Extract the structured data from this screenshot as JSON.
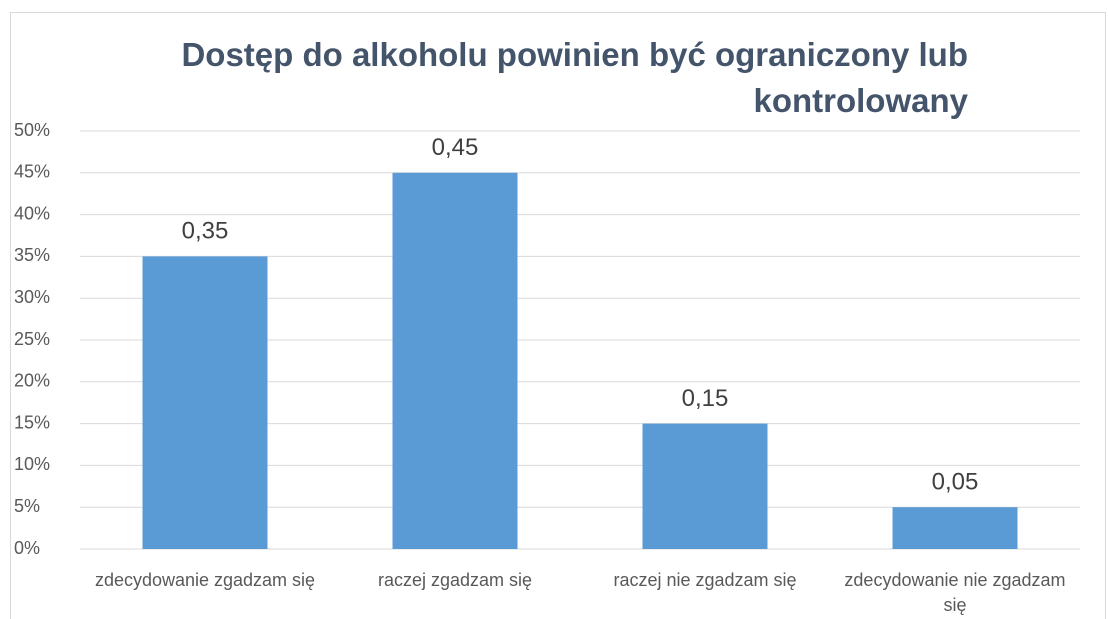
{
  "chart_data": {
    "type": "bar",
    "title": "Dostęp do alkoholu powinien być ograniczony lub kontrolowany",
    "categories": [
      "zdecydowanie zgadzam się",
      "raczej zgadzam się",
      "raczej nie zgadzam się",
      "zdecydowanie nie zgadzam się"
    ],
    "values": [
      35,
      45,
      15,
      5
    ],
    "value_labels": [
      "0,35",
      "0,45",
      "0,15",
      "0,05"
    ],
    "color": "#5b9bd5",
    "ylim": [
      0,
      50
    ],
    "yticks": [
      {
        "value": 0,
        "label": "0%"
      },
      {
        "value": 5,
        "label": "5%"
      },
      {
        "value": 10,
        "label": "10%"
      },
      {
        "value": 15,
        "label": "15%"
      },
      {
        "value": 20,
        "label": "20%"
      },
      {
        "value": 25,
        "label": "25%"
      },
      {
        "value": 30,
        "label": "30%"
      },
      {
        "value": 35,
        "label": "35%"
      },
      {
        "value": 40,
        "label": "40%"
      },
      {
        "value": 45,
        "label": "45%"
      },
      {
        "value": 50,
        "label": "50%"
      }
    ],
    "grid": true
  }
}
